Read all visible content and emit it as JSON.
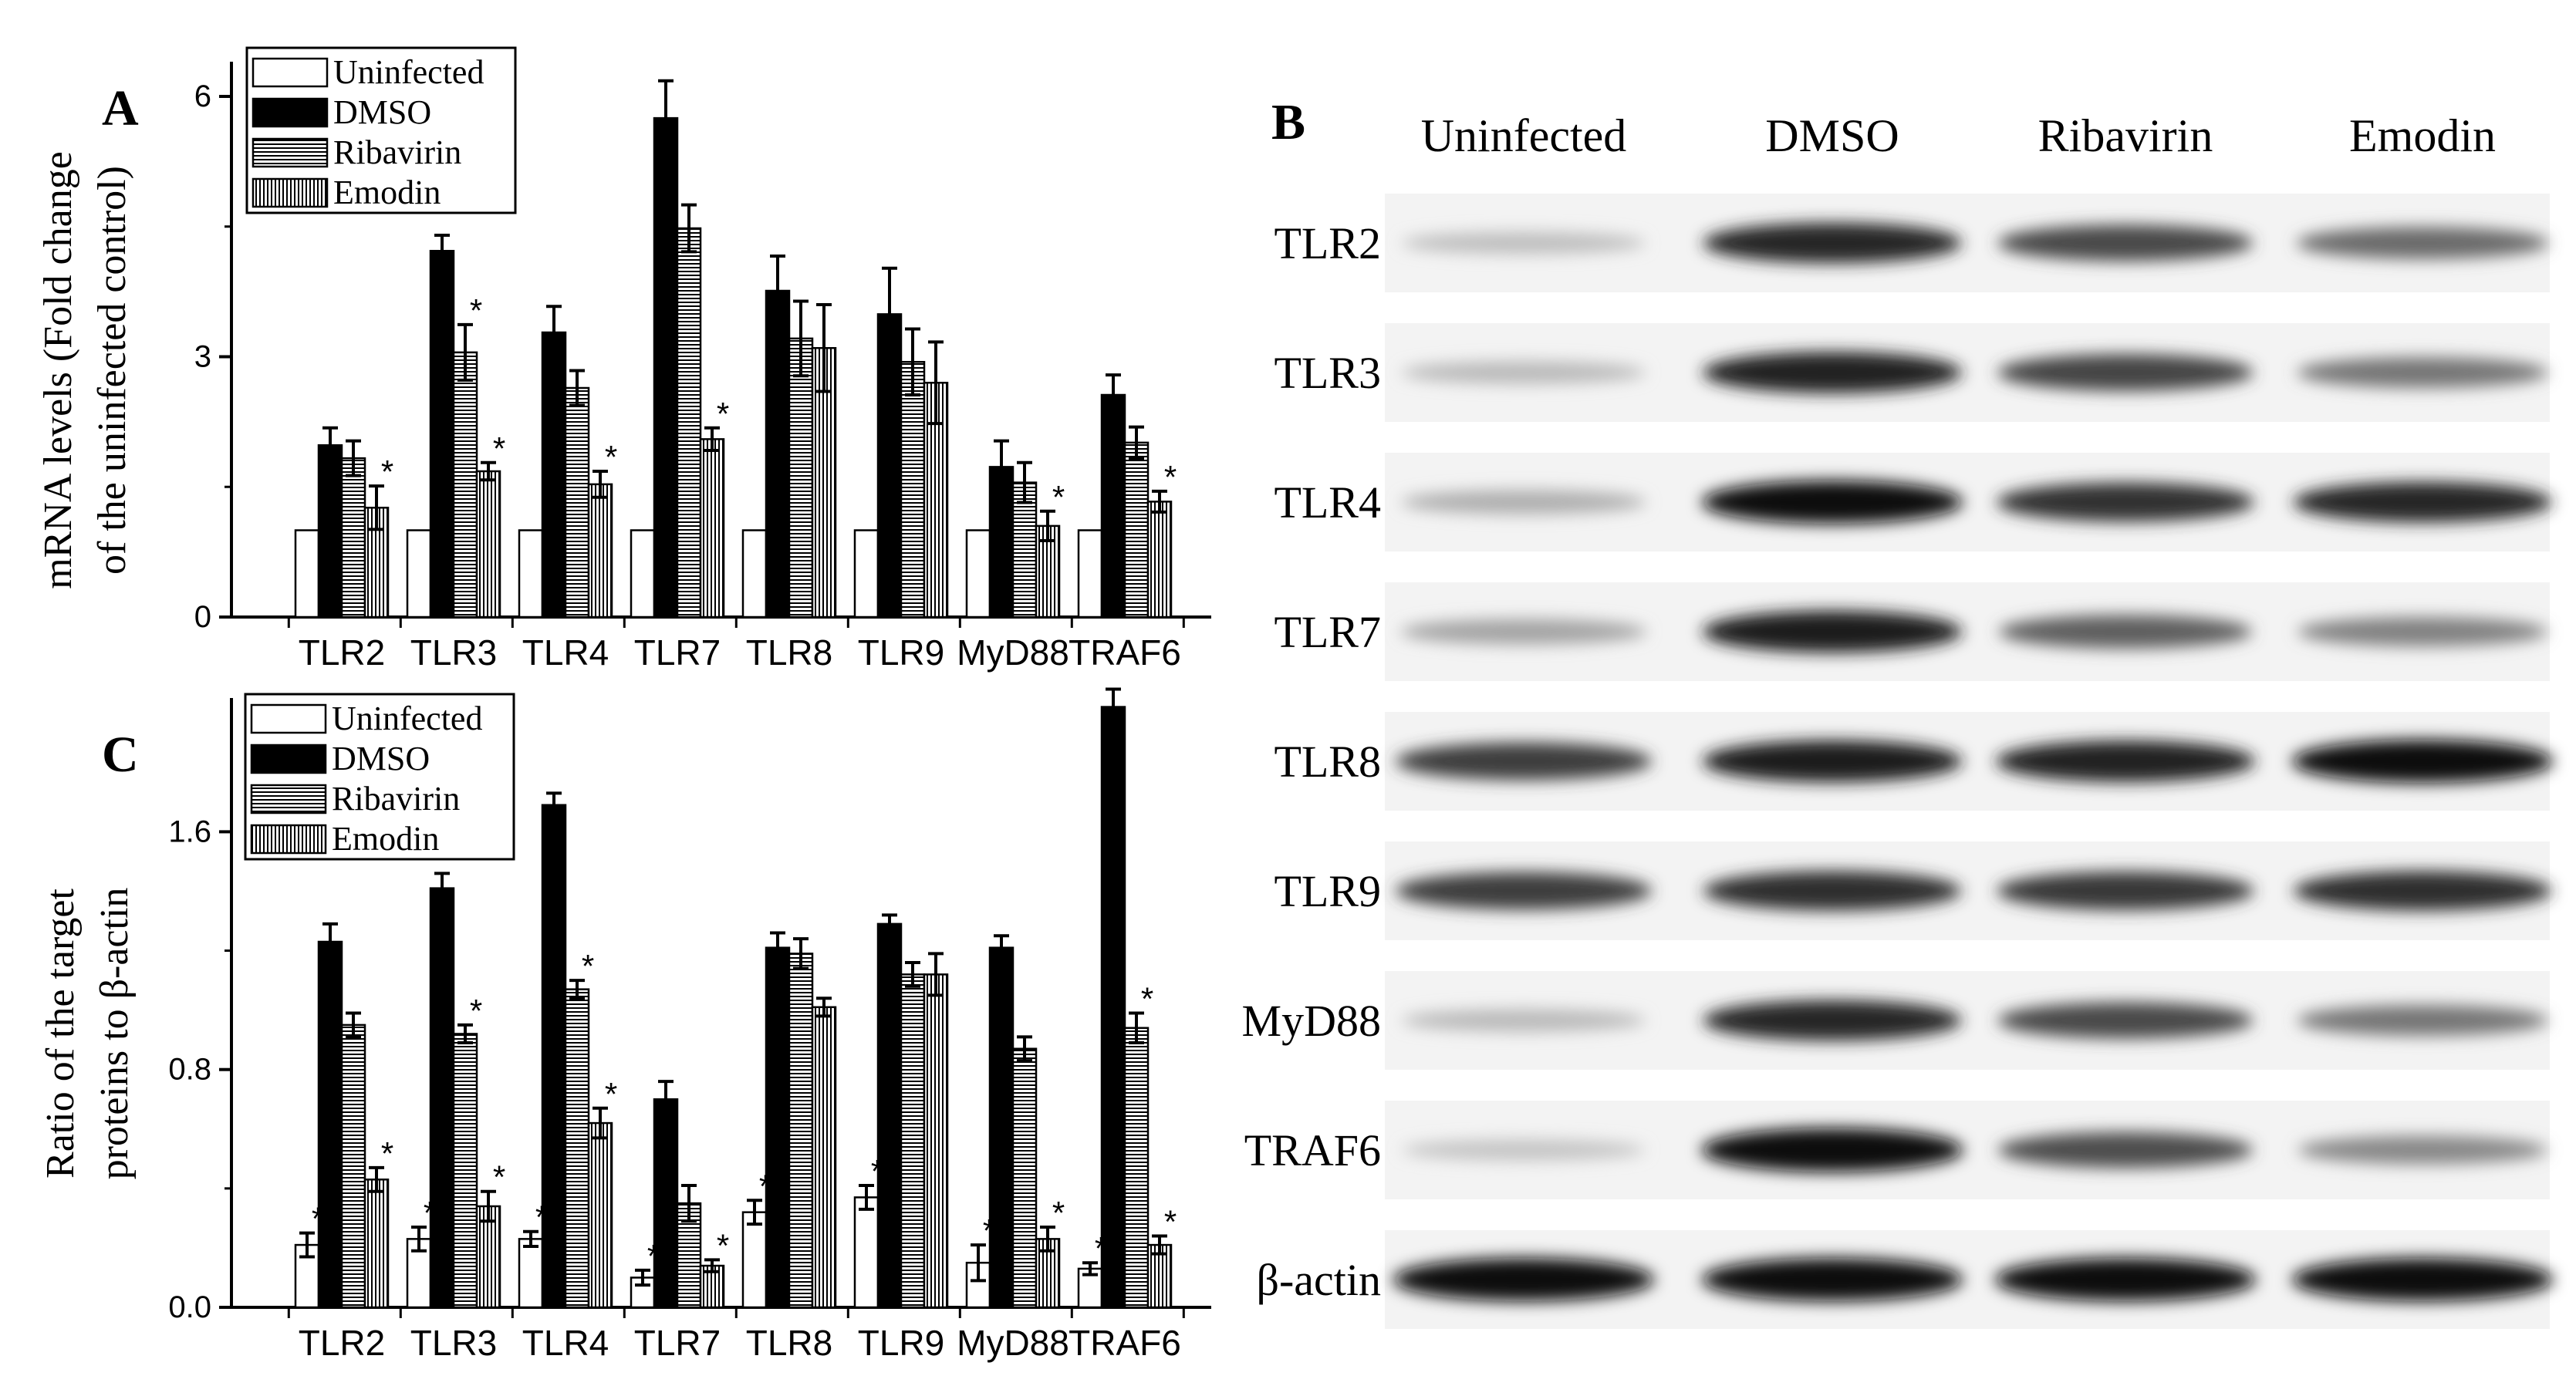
{
  "panels": {
    "A": {
      "label": "A"
    },
    "B": {
      "label": "B"
    },
    "C": {
      "label": "C"
    }
  },
  "legend": [
    {
      "name": "Uninfected",
      "fill": "#ffffff",
      "pattern": "none"
    },
    {
      "name": "DMSO",
      "fill": "#000000",
      "pattern": "solid"
    },
    {
      "name": "Ribavirin",
      "fill": "#ffffff",
      "pattern": "horizontal"
    },
    {
      "name": "Emodin",
      "fill": "#ffffff",
      "pattern": "vertical"
    }
  ],
  "chart_data": [
    {
      "panel": "A",
      "type": "bar",
      "ylabel_line1": "mRNA levels (Fold change",
      "ylabel_line2": "of the uninfected control)",
      "ylim": [
        0,
        6.4
      ],
      "yticks": [
        "0",
        "3",
        "6"
      ],
      "ytick_values": [
        0,
        3,
        6
      ],
      "categories": [
        "TLR2",
        "TLR3",
        "TLR4",
        "TLR7",
        "TLR8",
        "TLR9",
        "MyD88",
        "TRAF6"
      ],
      "series": [
        {
          "name": "Uninfected",
          "values": [
            1,
            1,
            1,
            1,
            1,
            1,
            1,
            1
          ],
          "errors": [
            0,
            0,
            0,
            0,
            0,
            0,
            0,
            0
          ]
        },
        {
          "name": "DMSO",
          "values": [
            1.98,
            4.22,
            3.28,
            5.75,
            3.76,
            3.49,
            1.73,
            2.56
          ],
          "errors": [
            0.2,
            0.18,
            0.3,
            0.43,
            0.4,
            0.53,
            0.3,
            0.23
          ]
        },
        {
          "name": "Ribavirin",
          "values": [
            1.83,
            3.05,
            2.64,
            4.48,
            3.21,
            2.94,
            1.55,
            2.01
          ],
          "errors": [
            0.2,
            0.32,
            0.2,
            0.27,
            0.43,
            0.38,
            0.23,
            0.18
          ]
        },
        {
          "name": "Emodin",
          "values": [
            1.26,
            1.68,
            1.53,
            2.05,
            3.1,
            2.7,
            1.05,
            1.33
          ],
          "errors": [
            0.25,
            0.1,
            0.15,
            0.13,
            0.5,
            0.47,
            0.17,
            0.12
          ]
        }
      ],
      "significance": [
        {
          "series": "Emodin",
          "category": "TLR2"
        },
        {
          "series": "Ribavirin",
          "category": "TLR3"
        },
        {
          "series": "Emodin",
          "category": "TLR3"
        },
        {
          "series": "Emodin",
          "category": "TLR4"
        },
        {
          "series": "Emodin",
          "category": "TLR7"
        },
        {
          "series": "Emodin",
          "category": "MyD88"
        },
        {
          "series": "Emodin",
          "category": "TRAF6"
        }
      ],
      "significance_mark": "*"
    },
    {
      "panel": "C",
      "type": "bar",
      "ylabel_line1": "Ratio of  the target",
      "ylabel_line2": "proteins to β-actin",
      "ylim": [
        0,
        2.05
      ],
      "yticks": [
        "0.0",
        "0.8",
        "1.6"
      ],
      "ytick_values": [
        0,
        0.8,
        1.6
      ],
      "categories": [
        "TLR2",
        "TLR3",
        "TLR4",
        "TLR7",
        "TLR8",
        "TLR9",
        "MyD88",
        "TRAF6"
      ],
      "series": [
        {
          "name": "Uninfected",
          "values": [
            0.21,
            0.23,
            0.23,
            0.1,
            0.32,
            0.37,
            0.15,
            0.13
          ],
          "errors": [
            0.04,
            0.04,
            0.025,
            0.025,
            0.04,
            0.04,
            0.06,
            0.02
          ]
        },
        {
          "name": "DMSO",
          "values": [
            1.23,
            1.41,
            1.69,
            0.7,
            1.21,
            1.29,
            1.21,
            2.02
          ],
          "errors": [
            0.06,
            0.05,
            0.04,
            0.06,
            0.05,
            0.03,
            0.04,
            0.06
          ]
        },
        {
          "name": "Ribavirin",
          "values": [
            0.95,
            0.92,
            1.07,
            0.35,
            1.19,
            1.12,
            0.87,
            0.94
          ],
          "errors": [
            0.04,
            0.03,
            0.03,
            0.06,
            0.05,
            0.04,
            0.04,
            0.05
          ]
        },
        {
          "name": "Emodin",
          "values": [
            0.43,
            0.34,
            0.62,
            0.14,
            1.01,
            1.12,
            0.23,
            0.21
          ],
          "errors": [
            0.04,
            0.05,
            0.05,
            0.02,
            0.03,
            0.07,
            0.04,
            0.03
          ]
        }
      ],
      "significance": [
        {
          "series": "Uninfected",
          "category": "TLR2"
        },
        {
          "series": "Emodin",
          "category": "TLR2"
        },
        {
          "series": "Uninfected",
          "category": "TLR3"
        },
        {
          "series": "Ribavirin",
          "category": "TLR3"
        },
        {
          "series": "Emodin",
          "category": "TLR3"
        },
        {
          "series": "Uninfected",
          "category": "TLR4"
        },
        {
          "series": "Ribavirin",
          "category": "TLR4"
        },
        {
          "series": "Emodin",
          "category": "TLR4"
        },
        {
          "series": "Uninfected",
          "category": "TLR7"
        },
        {
          "series": "Emodin",
          "category": "TLR7"
        },
        {
          "series": "Uninfected",
          "category": "TLR8"
        },
        {
          "series": "Uninfected",
          "category": "TLR9"
        },
        {
          "series": "Uninfected",
          "category": "MyD88"
        },
        {
          "series": "Emodin",
          "category": "MyD88"
        },
        {
          "series": "Uninfected",
          "category": "TRAF6"
        },
        {
          "series": "Ribavirin",
          "category": "TRAF6"
        },
        {
          "series": "Emodin",
          "category": "TRAF6"
        }
      ],
      "significance_mark": "*"
    }
  ],
  "blot": {
    "columns": [
      "Uninfected",
      "DMSO",
      "Ribavirin",
      "Emodin"
    ],
    "rows": [
      {
        "label": "TLR2",
        "intensity": [
          0.18,
          0.85,
          0.7,
          0.55
        ]
      },
      {
        "label": "TLR3",
        "intensity": [
          0.2,
          0.88,
          0.72,
          0.5
        ]
      },
      {
        "label": "TLR4",
        "intensity": [
          0.25,
          0.95,
          0.8,
          0.85
        ]
      },
      {
        "label": "TLR7",
        "intensity": [
          0.3,
          0.9,
          0.6,
          0.45
        ]
      },
      {
        "label": "TLR8",
        "intensity": [
          0.75,
          0.9,
          0.88,
          0.95
        ]
      },
      {
        "label": "TLR9",
        "intensity": [
          0.75,
          0.82,
          0.78,
          0.82
        ]
      },
      {
        "label": "MyD88",
        "intensity": [
          0.2,
          0.85,
          0.7,
          0.5
        ]
      },
      {
        "label": "TRAF6",
        "intensity": [
          0.15,
          0.98,
          0.68,
          0.42
        ]
      },
      {
        "label": "β-actin",
        "intensity": [
          0.95,
          0.95,
          0.95,
          0.95
        ]
      }
    ]
  },
  "colors": {
    "ink": "#000000",
    "paper": "#ffffff",
    "blot_bg": "#f3f3f3"
  }
}
